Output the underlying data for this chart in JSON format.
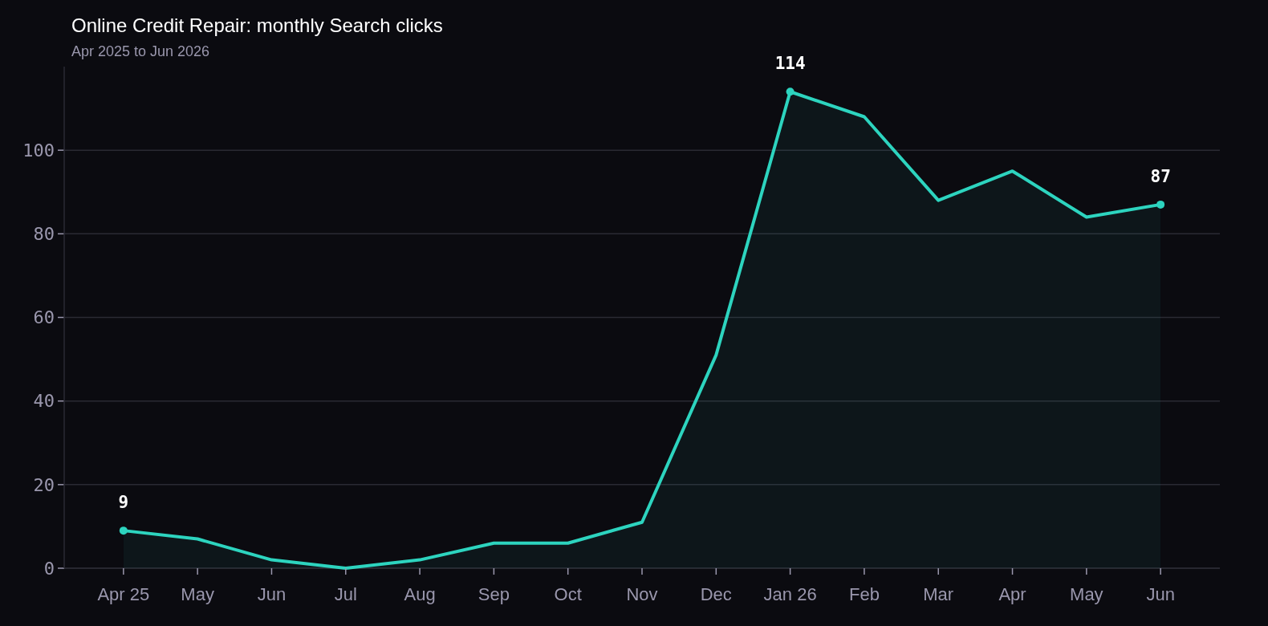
{
  "chart_data": {
    "type": "area",
    "title": "Online Credit Repair: monthly Search clicks",
    "subtitle": "Apr 2025 to Jun 2026",
    "categories": [
      "Apr 25",
      "May",
      "Jun",
      "Jul",
      "Aug",
      "Sep",
      "Oct",
      "Nov",
      "Dec",
      "Jan 26",
      "Feb",
      "Mar",
      "Apr",
      "May",
      "Jun"
    ],
    "series": [
      {
        "color": "#2dd4bf",
        "values": [
          9,
          7,
          2,
          0,
          2,
          6,
          6,
          11,
          51,
          114,
          108,
          88,
          95,
          84,
          87
        ],
        "value_labels": [
          "9",
          null,
          null,
          null,
          null,
          null,
          null,
          null,
          null,
          "114",
          null,
          null,
          null,
          null,
          "87"
        ]
      }
    ],
    "ylim": [
      0,
      120
    ],
    "yticks": [
      0,
      20,
      40,
      60,
      80,
      100
    ],
    "grid": "y",
    "marker": "none",
    "line_style": "solid"
  }
}
